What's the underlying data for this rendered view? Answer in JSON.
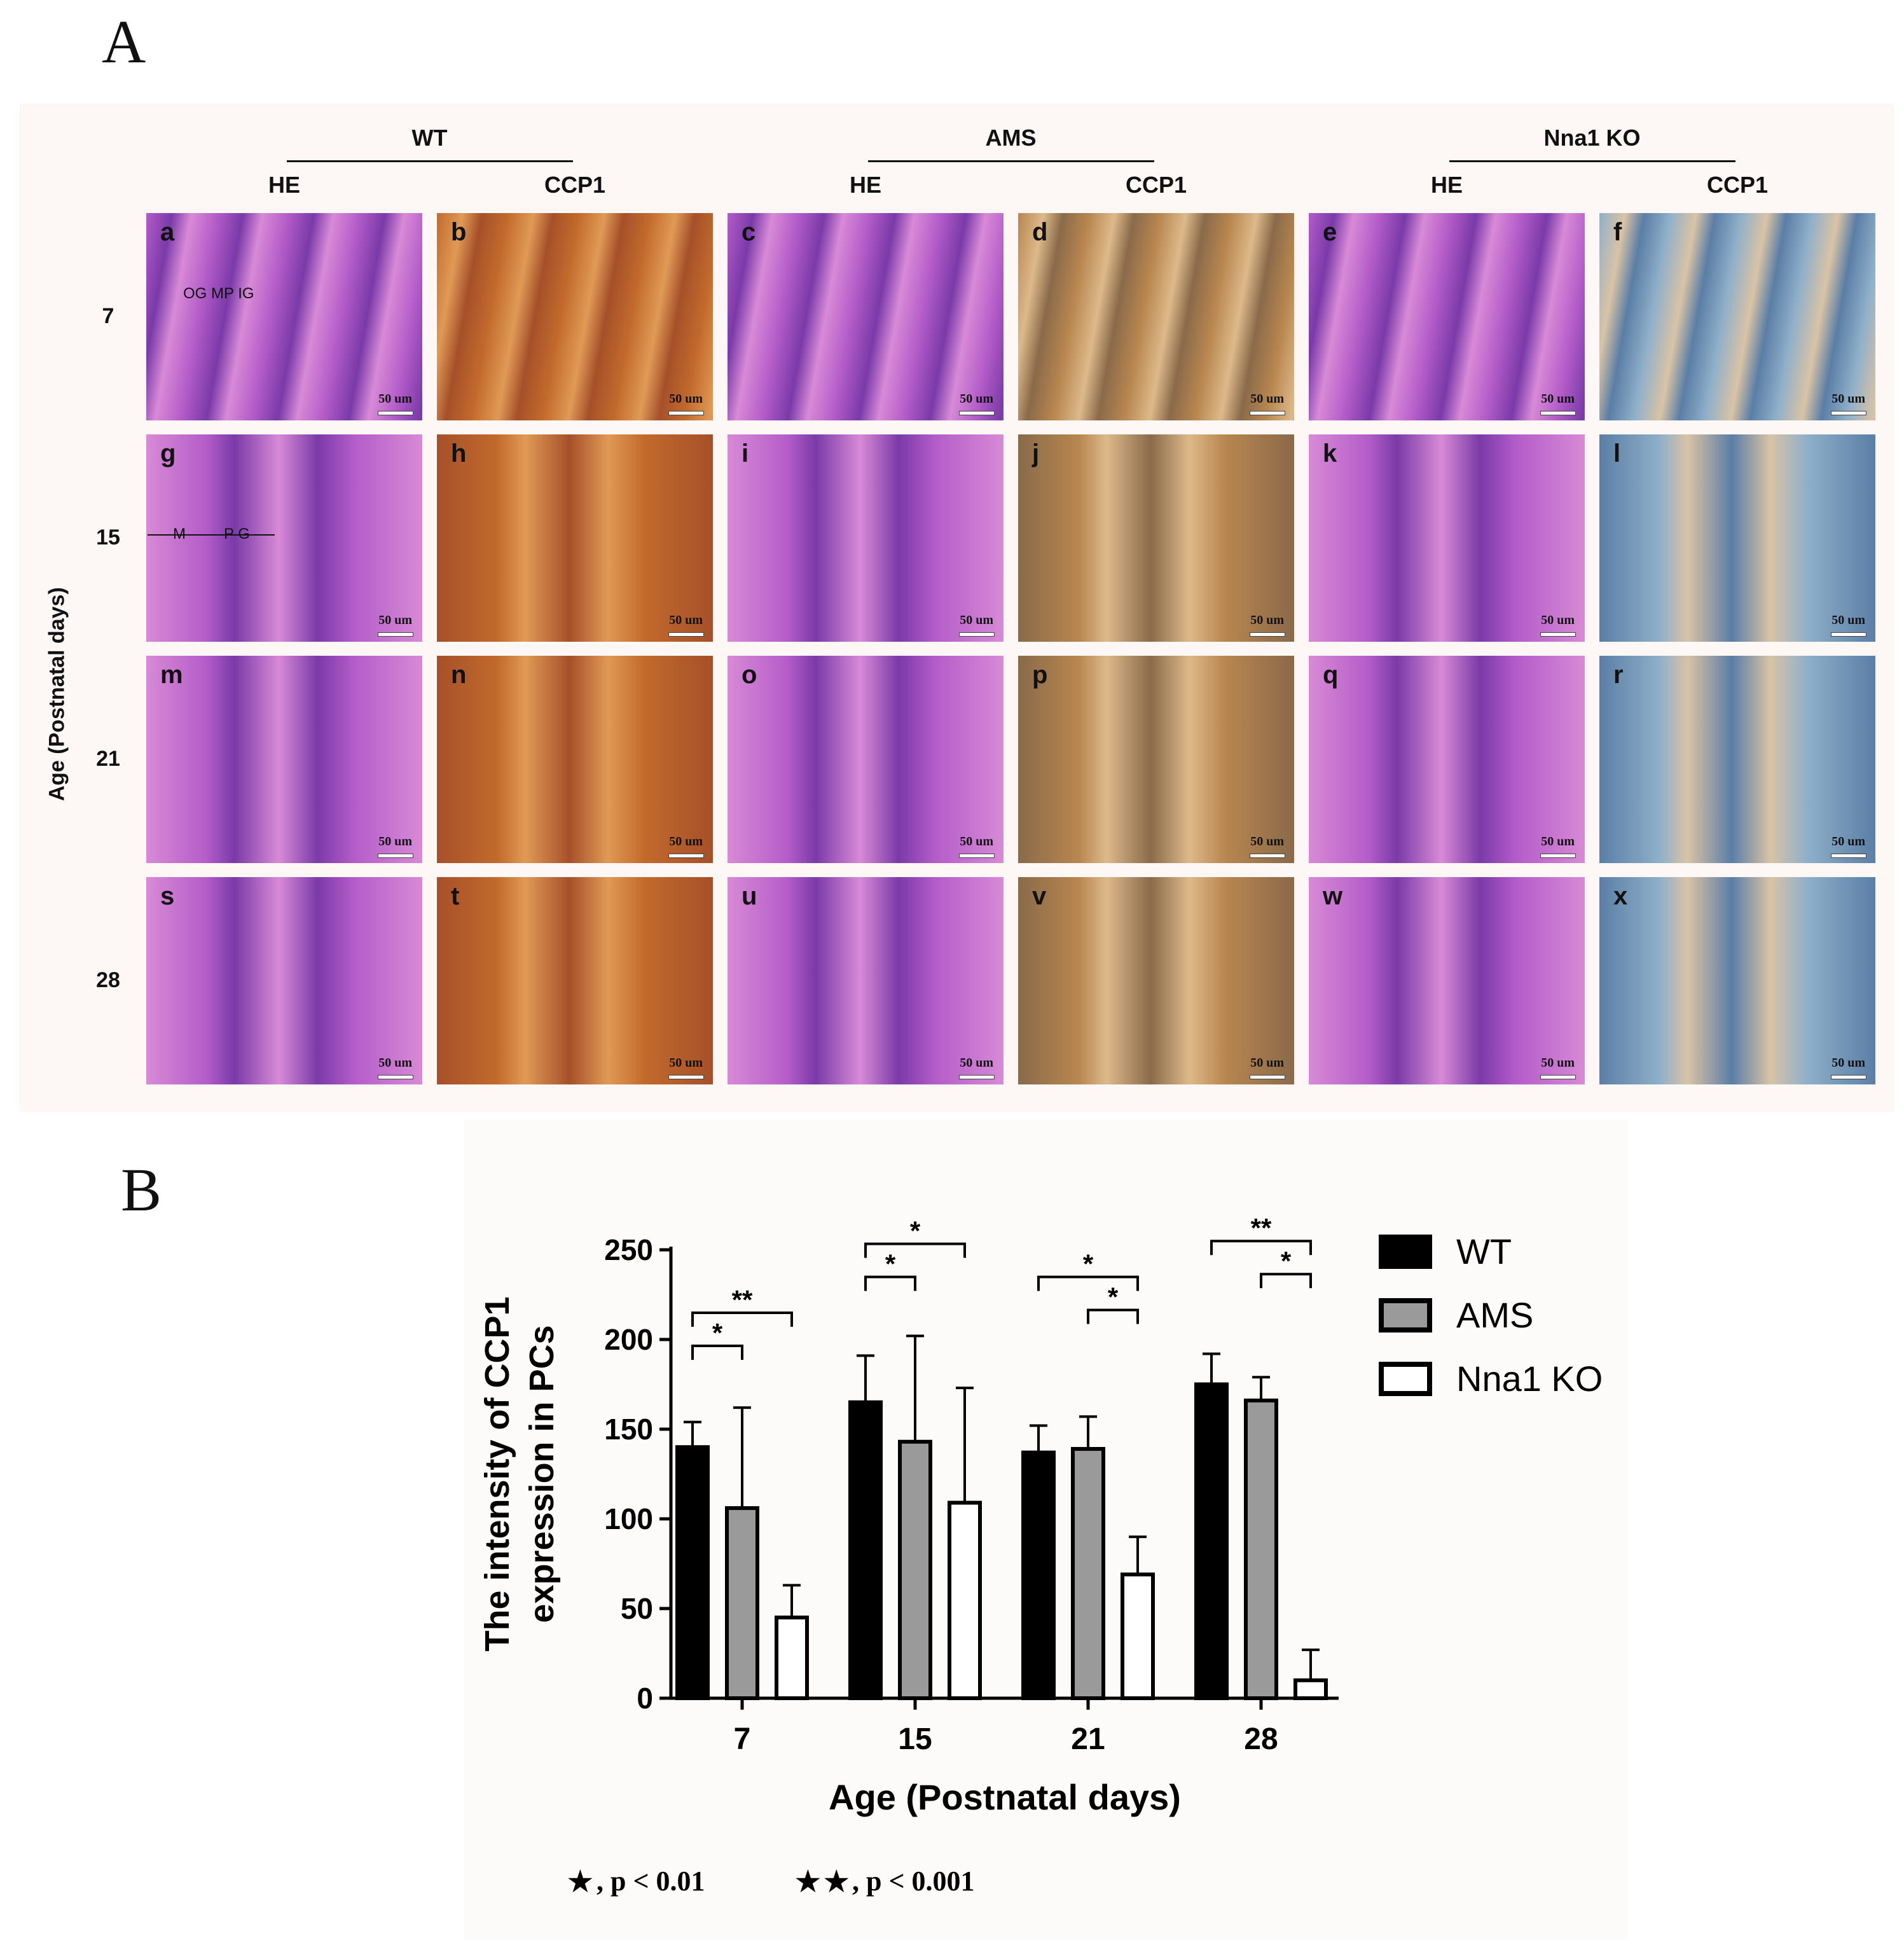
{
  "panel_a": {
    "label": "A",
    "groups": [
      {
        "name": "WT",
        "stains": [
          "HE",
          "CCP1"
        ]
      },
      {
        "name": "AMS",
        "stains": [
          "HE",
          "CCP1"
        ]
      },
      {
        "name": "Nna1 KO",
        "stains": [
          "HE",
          "CCP1"
        ]
      }
    ],
    "row_axis_label": "Age (Postnatal days)",
    "rows": [
      "7",
      "15",
      "21",
      "28"
    ],
    "tile_letters": [
      [
        "a",
        "b",
        "c",
        "d",
        "e",
        "f"
      ],
      [
        "g",
        "h",
        "i",
        "j",
        "k",
        "l"
      ],
      [
        "m",
        "n",
        "o",
        "p",
        "q",
        "r"
      ],
      [
        "s",
        "t",
        "u",
        "v",
        "w",
        "x"
      ]
    ],
    "scale_bar_label": "50 um",
    "annotation_row1": "OG MP IG",
    "annotation_row2_m": "M",
    "annotation_row2_pg": "P  G",
    "tile_colors": {
      "HE": [
        "#b35cc9",
        "#7a3aa8",
        "#d88ad6"
      ],
      "CCP1_WT": [
        "#c26a2c",
        "#e09a55",
        "#a6502a"
      ],
      "CCP1_AMS": [
        "#b8864f",
        "#ddb98a",
        "#8a6a4a"
      ],
      "CCP1_KO": [
        "#8fb0c9",
        "#d9c3a5",
        "#5a7ea6"
      ]
    }
  },
  "panel_b": {
    "label": "B",
    "legend": [
      {
        "name": "WT",
        "color": "#000000"
      },
      {
        "name": "AMS",
        "color": "#9a9a9a"
      },
      {
        "name": "Nna1 KO",
        "color": "#ffffff"
      }
    ],
    "footnote_single": ", p < 0.01",
    "footnote_double": ", p < 0.001",
    "footnote_star": "★",
    "footnote_stars": "★★"
  },
  "chart_data": {
    "type": "bar",
    "categories": [
      "7",
      "15",
      "21",
      "28"
    ],
    "series": [
      {
        "name": "WT",
        "values": [
          140,
          165,
          137,
          175
        ],
        "errors": [
          14,
          26,
          15,
          17
        ],
        "color": "#000000"
      },
      {
        "name": "AMS",
        "values": [
          106,
          143,
          139,
          166
        ],
        "errors": [
          56,
          59,
          18,
          13
        ],
        "color": "#9a9a9a"
      },
      {
        "name": "Nna1 KO",
        "values": [
          45,
          109,
          69,
          10
        ],
        "errors": [
          18,
          64,
          21,
          17
        ],
        "color": "#ffffff"
      }
    ],
    "xlabel": "Age (Postnatal days)",
    "ylabel_line1": "The intensity of CCP1",
    "ylabel_line2": "expression in PCs",
    "ylim": [
      0,
      250
    ],
    "yticks": [
      0,
      50,
      100,
      150,
      200,
      250
    ],
    "significance": [
      {
        "category": "7",
        "from": 0,
        "to": 1,
        "label": "*",
        "level": 0
      },
      {
        "category": "7",
        "from": 0,
        "to": 2,
        "label": "**",
        "level": 1
      },
      {
        "category": "15",
        "from": 0,
        "to": 1,
        "label": "*",
        "level": 1
      },
      {
        "category": "15",
        "from": 0,
        "to": 2,
        "label": "*",
        "level": 2
      },
      {
        "category": "21",
        "from": 1,
        "to": 2,
        "label": "*",
        "level": 0
      },
      {
        "category": "21",
        "from": 0,
        "to": 2,
        "label": "*",
        "level": 1
      },
      {
        "category": "28",
        "from": 1,
        "to": 2,
        "label": "*",
        "level": 0
      },
      {
        "category": "28",
        "from": 0,
        "to": 2,
        "label": "**",
        "level": 1
      }
    ],
    "significance_heights": [
      200,
      220,
      220,
      240
    ]
  }
}
